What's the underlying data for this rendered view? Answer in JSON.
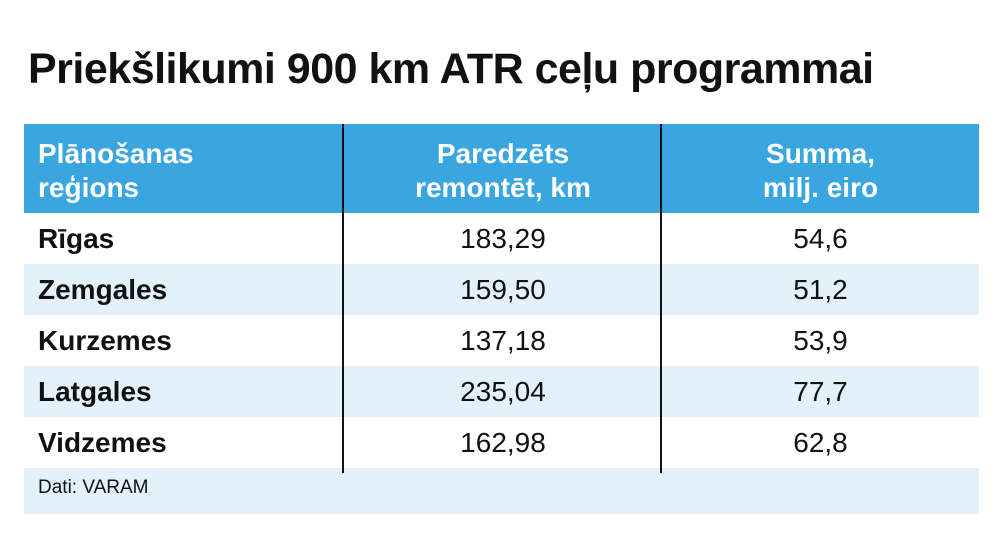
{
  "title": "Priekšlikumi 900 km ATR ceļu programmai",
  "chart_data": {
    "type": "table",
    "title": "Priekšlikumi 900 km ATR ceļu programmai",
    "columns": [
      {
        "line1": "Plānošanas",
        "line2": "reģions"
      },
      {
        "line1": "Paredzēts",
        "line2": "remontēt, km"
      },
      {
        "line1": "Summa,",
        "line2": "milj. eiro"
      }
    ],
    "rows": [
      {
        "region": "Rīgas",
        "km": "183,29",
        "sum": "54,6"
      },
      {
        "region": "Zemgales",
        "km": "159,50",
        "sum": "51,2"
      },
      {
        "region": "Kurzemes",
        "km": "137,18",
        "sum": "53,9"
      },
      {
        "region": "Latgales",
        "km": "235,04",
        "sum": "77,7"
      },
      {
        "region": "Vidzemes",
        "km": "162,98",
        "sum": "62,8"
      }
    ],
    "source": "Dati: VARAM"
  },
  "colors": {
    "header": "#3aa6e0",
    "alt_row": "#e3f1fb"
  }
}
